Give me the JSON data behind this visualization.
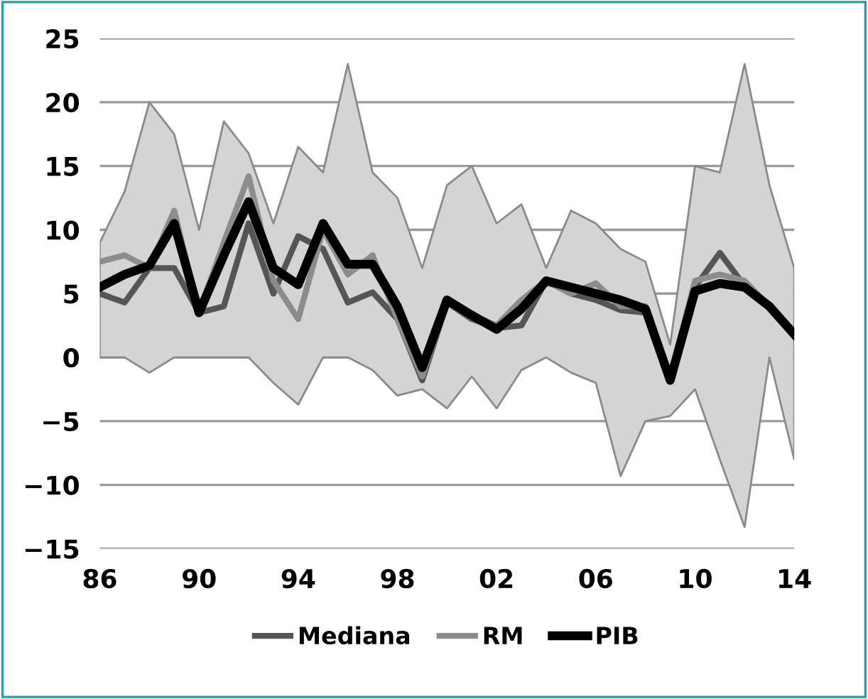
{
  "chart_data": {
    "type": "line",
    "x": [
      1986,
      1987,
      1988,
      1989,
      1990,
      1991,
      1992,
      1993,
      1994,
      1995,
      1996,
      1997,
      1998,
      1999,
      2000,
      2001,
      2002,
      2003,
      2004,
      2005,
      2006,
      2007,
      2008,
      2009,
      2010,
      2011,
      2012,
      2013,
      2014
    ],
    "xlim": [
      1986,
      2014
    ],
    "xticks": [
      {
        "value": 1986,
        "label": "86"
      },
      {
        "value": 1990,
        "label": "90"
      },
      {
        "value": 1994,
        "label": "94"
      },
      {
        "value": 1998,
        "label": "98"
      },
      {
        "value": 2002,
        "label": "02"
      },
      {
        "value": 2006,
        "label": "06"
      },
      {
        "value": 2010,
        "label": "10"
      },
      {
        "value": 2014,
        "label": "14"
      }
    ],
    "ylim": [
      -15,
      25
    ],
    "yticks": [
      {
        "value": -15,
        "label": "−15"
      },
      {
        "value": -10,
        "label": "−10"
      },
      {
        "value": -5,
        "label": "−5"
      },
      0,
      5,
      10,
      15,
      20,
      25
    ],
    "grid": "y",
    "legend": "bottom",
    "marker": "none",
    "line_style": "solid",
    "series": [
      {
        "name": "Mediana",
        "color": "#555555",
        "values": [
          5,
          4.3,
          7,
          7,
          3.5,
          4,
          10.5,
          5,
          9.5,
          8.5,
          4.3,
          5.1,
          3,
          -1.8,
          4.3,
          3,
          2.3,
          2.5,
          6,
          5,
          4.5,
          3.7,
          3.5,
          -1.5,
          5.5,
          8.2,
          5.6,
          4,
          2
        ],
        "lower": [
          0,
          0,
          -1.2,
          0,
          0,
          0,
          0,
          -2,
          -3.7,
          0,
          0,
          -1,
          -3,
          -2.5,
          -4,
          -1.5,
          -4,
          -1,
          0,
          -1.2,
          -2,
          -9.3,
          -5,
          -4.6,
          -2.5,
          -8,
          -13.3,
          0,
          -8
        ],
        "upper": [
          9,
          13,
          20,
          17.5,
          10,
          18.5,
          16,
          10.5,
          16.5,
          14.5,
          23,
          14.5,
          12.5,
          7,
          13.5,
          15,
          10.5,
          12,
          7,
          11.5,
          10.5,
          8.5,
          7.5,
          1,
          15,
          14.5,
          23,
          13.5,
          7
        ]
      },
      {
        "name": "RM",
        "color": "#8c8c8c",
        "values": [
          7.5,
          8,
          7,
          11.5,
          3.5,
          9,
          14.2,
          6,
          3,
          10,
          6.5,
          8,
          3,
          -1.5,
          4.5,
          3.3,
          2.5,
          4.5,
          6,
          5,
          5.8,
          4,
          4,
          -1.5,
          6,
          6.5,
          6,
          4,
          2
        ]
      },
      {
        "name": "PIB",
        "color": "#000000",
        "values": [
          5.5,
          6.5,
          7.2,
          10.5,
          3.5,
          8,
          12.2,
          7,
          5.7,
          10.5,
          7.3,
          7.3,
          4,
          -0.8,
          4.5,
          3.3,
          2.2,
          3.8,
          6,
          5.5,
          5,
          4.5,
          3.8,
          -1.8,
          5.2,
          5.8,
          5.5,
          4,
          1.8
        ]
      }
    ]
  }
}
